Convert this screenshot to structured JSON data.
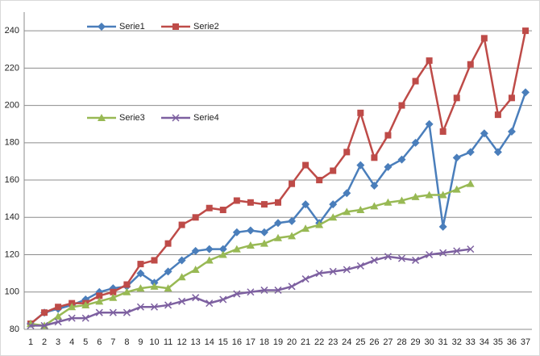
{
  "chart_data": {
    "type": "line",
    "categories": [
      "1",
      "2",
      "3",
      "4",
      "5",
      "6",
      "7",
      "8",
      "9",
      "10",
      "11",
      "12",
      "13",
      "14",
      "15",
      "16",
      "17",
      "18",
      "19",
      "20",
      "21",
      "22",
      "23",
      "24",
      "25",
      "26",
      "27",
      "28",
      "29",
      "30",
      "31",
      "32",
      "33",
      "34",
      "35",
      "36",
      "37"
    ],
    "series": [
      {
        "name": "Serie1",
        "color": "#4a7ebb",
        "marker": "diamond",
        "values": [
          83,
          89,
          91,
          93,
          96,
          100,
          102,
          103,
          110,
          105,
          111,
          117,
          122,
          123,
          123,
          132,
          133,
          132,
          137,
          138,
          147,
          137,
          147,
          153,
          168,
          157,
          167,
          171,
          180,
          190,
          135,
          172,
          175,
          185,
          175,
          186,
          207
        ]
      },
      {
        "name": "Serie2",
        "color": "#be4b48",
        "marker": "square",
        "values": [
          83,
          89,
          92,
          94,
          94,
          98,
          100,
          104,
          115,
          117,
          126,
          136,
          140,
          145,
          144,
          149,
          148,
          147,
          148,
          158,
          168,
          160,
          165,
          175,
          196,
          172,
          184,
          200,
          213,
          224,
          186,
          204,
          222,
          236,
          195,
          204,
          240
        ]
      },
      {
        "name": "Serie3",
        "color": "#98b954",
        "marker": "triangle",
        "values": [
          83,
          82,
          87,
          92,
          93,
          95,
          97,
          100,
          102,
          103,
          102,
          108,
          112,
          117,
          120,
          123,
          125,
          126,
          129,
          130,
          134,
          136,
          140,
          143,
          144,
          146,
          148,
          149,
          151,
          152,
          152,
          155,
          158,
          null,
          null,
          null,
          null
        ]
      },
      {
        "name": "Serie4",
        "color": "#7d60a0",
        "marker": "x",
        "values": [
          82,
          82,
          84,
          86,
          86,
          89,
          89,
          89,
          92,
          92,
          93,
          95,
          97,
          94,
          96,
          99,
          100,
          101,
          101,
          103,
          107,
          110,
          111,
          112,
          114,
          117,
          119,
          118,
          117,
          120,
          121,
          122,
          123,
          null,
          null,
          null,
          null
        ]
      }
    ],
    "ylim": [
      80,
      250
    ],
    "yticks": [
      80,
      100,
      120,
      140,
      160,
      180,
      200,
      220,
      240
    ],
    "grid": true
  }
}
